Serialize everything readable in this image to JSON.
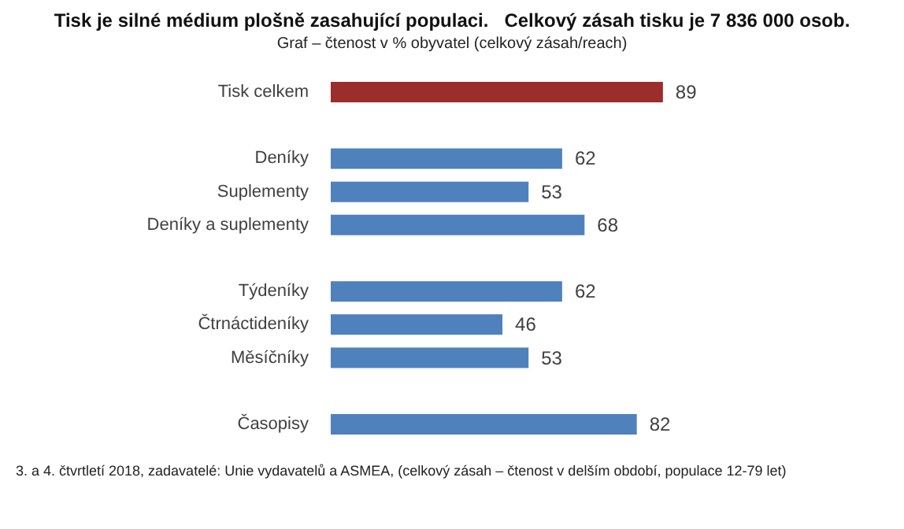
{
  "chart_data": {
    "type": "bar",
    "orientation": "horizontal",
    "title": "Tisk je silné médium plošně zasahující populaci.   Celkový zásah tisku je 7 836 000 osob.",
    "subtitle": "Graf – čtenost v % obyvatel (celkový zásah/reach)",
    "categories": [
      "Tisk celkem",
      null,
      "Deníky",
      "Suplementy",
      "Deníky a suplementy",
      null,
      "Týdeníky",
      "Čtrnáctideníky",
      "Měsíčníky",
      null,
      "Časopisy"
    ],
    "values": [
      89,
      null,
      62,
      53,
      68,
      null,
      62,
      46,
      53,
      null,
      82
    ],
    "colors": [
      "#9b2d2a",
      null,
      "#4f81bd",
      "#4f81bd",
      "#4f81bd",
      null,
      "#4f81bd",
      "#4f81bd",
      "#4f81bd",
      null,
      "#4f81bd"
    ],
    "data_labels": true,
    "annotations": [
      "3. a 4. čtvrtletí 2018, zadavatelé: Unie vydavatelů a ASMEA, (celkový zásah – čtenost v delším období, populace 12-79 let)"
    ]
  }
}
